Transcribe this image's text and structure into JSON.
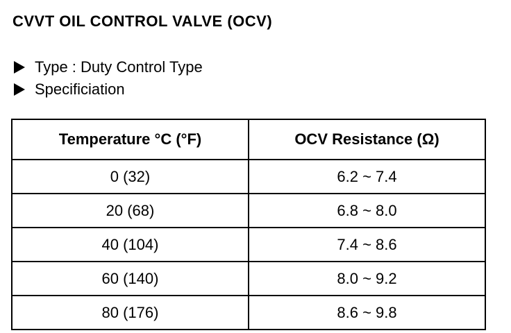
{
  "title": "CVVT OIL CONTROL VALVE (OCV)",
  "items": [
    "Type : Duty Control Type",
    "Specificiation"
  ],
  "table": {
    "header": [
      "Temperature °C (°F)",
      "OCV Resistance (Ω)"
    ],
    "rows": [
      [
        "0 (32)",
        "6.2 ~ 7.4"
      ],
      [
        "20 (68)",
        "6.8 ~ 8.0"
      ],
      [
        "40 (104)",
        "7.4 ~ 8.6"
      ],
      [
        "60 (140)",
        "8.0 ~ 9.2"
      ],
      [
        "80 (176)",
        "8.6 ~ 9.8"
      ]
    ]
  }
}
